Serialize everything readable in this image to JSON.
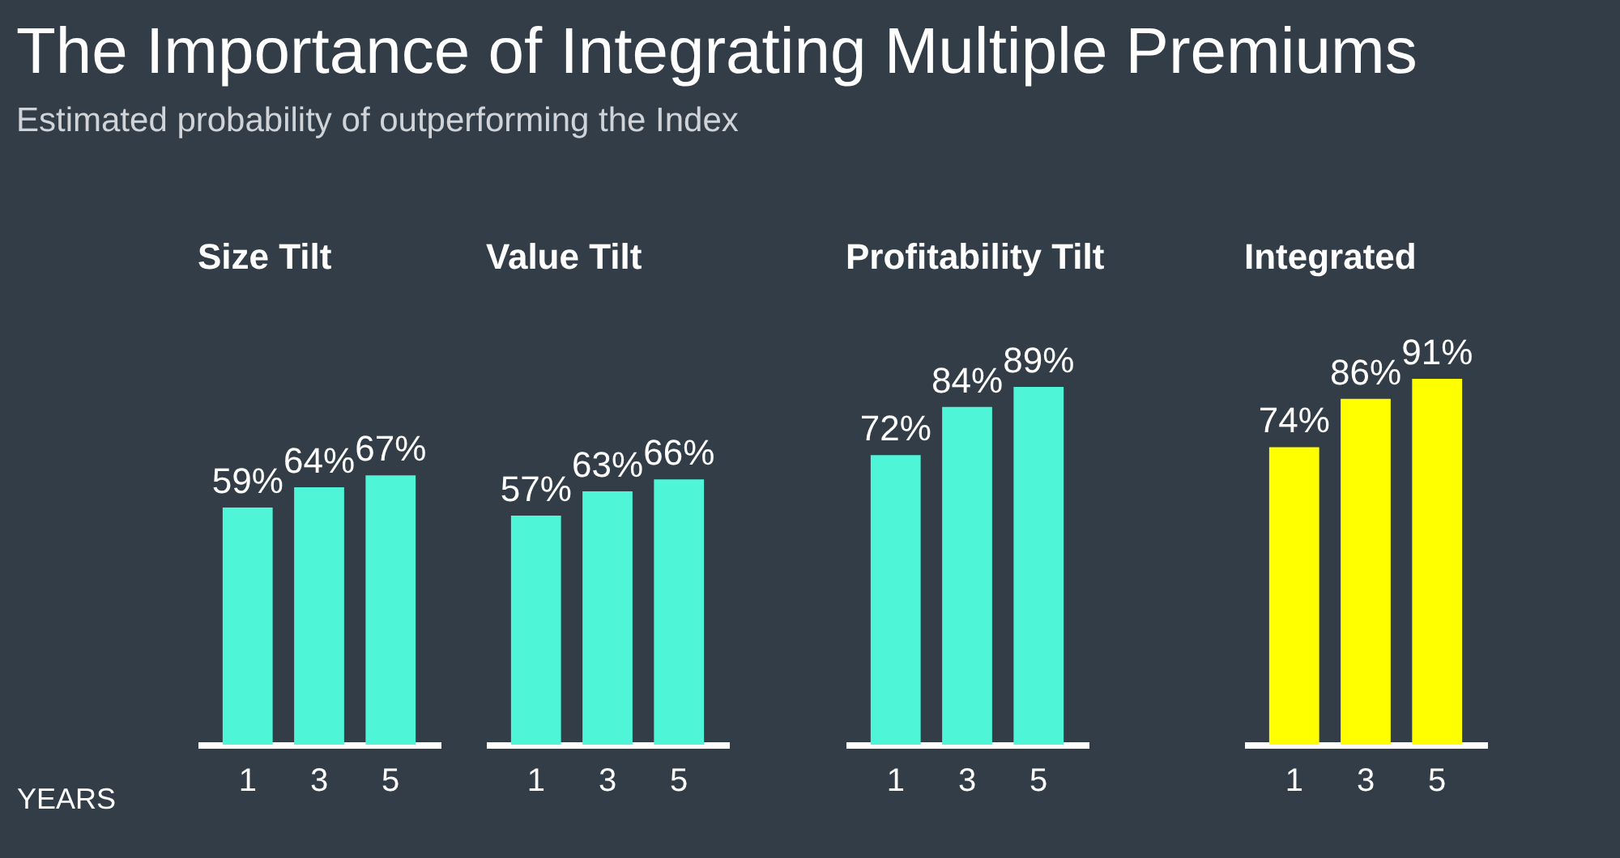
{
  "chart_data": [
    {
      "type": "other",
      "title": "The Importance of Integrating Multiple Premiums",
      "subtitle": "Estimated probability of outperforming the Index"
    },
    {
      "type": "bar",
      "title": "Size Tilt",
      "xlabel": "YEARS",
      "categories": [
        "1",
        "3",
        "5"
      ],
      "values": [
        59,
        64,
        67
      ],
      "value_labels": [
        "59%",
        "64%",
        "67%"
      ],
      "color": "#4ef5d6",
      "tick_labels": "x"
    },
    {
      "type": "bar",
      "title": "Value Tilt",
      "categories": [
        "1",
        "3",
        "5"
      ],
      "values": [
        57,
        63,
        66
      ],
      "value_labels": [
        "57%",
        "63%",
        "66%"
      ],
      "color": "#4ef5d6",
      "tick_labels": "x"
    },
    {
      "type": "bar",
      "title": "Profitability Tilt",
      "categories": [
        "1",
        "3",
        "5"
      ],
      "values": [
        72,
        84,
        89
      ],
      "value_labels": [
        "72%",
        "84%",
        "89%"
      ],
      "color": "#4ef5d6",
      "tick_labels": "x"
    },
    {
      "type": "bar",
      "title": "Integrated",
      "categories": [
        "1",
        "3",
        "5"
      ],
      "values": [
        74,
        86,
        91
      ],
      "value_labels": [
        "74%",
        "86%",
        "91%"
      ],
      "color": "#ffff00",
      "tick_labels": "x"
    }
  ]
}
